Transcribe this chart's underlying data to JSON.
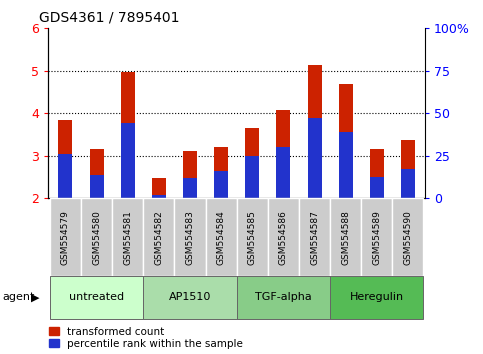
{
  "title": "GDS4361 / 7895401",
  "samples": [
    "GSM554579",
    "GSM554580",
    "GSM554581",
    "GSM554582",
    "GSM554583",
    "GSM554584",
    "GSM554585",
    "GSM554586",
    "GSM554587",
    "GSM554588",
    "GSM554589",
    "GSM554590"
  ],
  "red_values": [
    3.85,
    3.15,
    4.97,
    2.48,
    3.12,
    3.2,
    3.65,
    4.08,
    5.13,
    4.68,
    3.15,
    3.38
  ],
  "blue_values": [
    3.03,
    2.55,
    3.78,
    2.08,
    2.48,
    2.63,
    3.0,
    3.2,
    3.9,
    3.55,
    2.5,
    2.7
  ],
  "ymin": 2.0,
  "ymax": 6.0,
  "yticks_left": [
    2,
    3,
    4,
    5,
    6
  ],
  "yticks_right_vals": [
    2.0,
    2.5,
    3.0,
    3.5,
    4.0,
    4.5,
    5.0,
    5.5,
    6.0
  ],
  "right_tick_positions": [
    2.0,
    3.0,
    4.0,
    5.0,
    6.0
  ],
  "right_tick_labels": [
    "0",
    "25",
    "50",
    "75",
    "100%"
  ],
  "groups": [
    {
      "label": "untreated",
      "start": 0,
      "end": 3
    },
    {
      "label": "AP1510",
      "start": 3,
      "end": 6
    },
    {
      "label": "TGF-alpha",
      "start": 6,
      "end": 9
    },
    {
      "label": "Heregulin",
      "start": 9,
      "end": 12
    }
  ],
  "group_colors": [
    "#ccffcc",
    "#aaddaa",
    "#88cc88",
    "#55bb55"
  ],
  "bar_width": 0.45,
  "red_color": "#cc2200",
  "blue_color": "#2233cc",
  "gray_bg": "#cccccc",
  "legend_red": "transformed count",
  "legend_blue": "percentile rank within the sample",
  "agent_label": "agent"
}
